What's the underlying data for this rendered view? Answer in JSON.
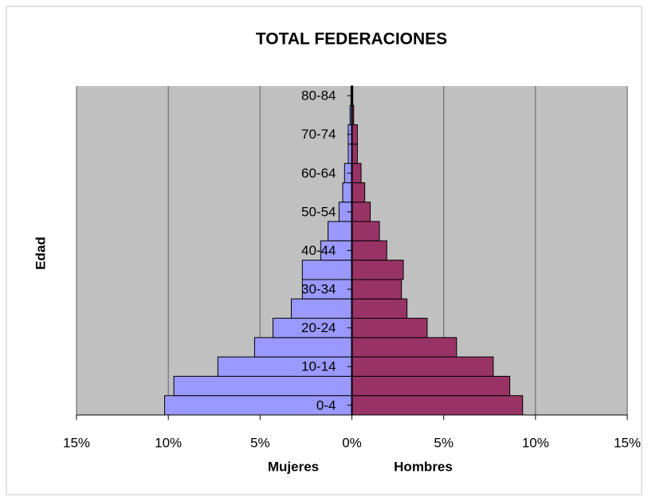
{
  "chart_data": {
    "type": "pyramid",
    "title": "TOTAL FEDERACIONES",
    "y_label": "Edad",
    "categories": [
      "0-4",
      null,
      "10-14",
      null,
      "20-24",
      null,
      "30-34",
      null,
      "40-44",
      null,
      "50-54",
      null,
      "60-64",
      null,
      "70-74",
      null,
      "80-84"
    ],
    "series": [
      {
        "name": "Mujeres",
        "color": "#9999ff",
        "values": [
          -10.2,
          -9.7,
          -7.3,
          -5.3,
          -4.3,
          -3.3,
          -2.7,
          -2.7,
          -1.7,
          -1.3,
          -0.7,
          -0.5,
          -0.4,
          -0.2,
          -0.2,
          -0.1,
          -0.05
        ]
      },
      {
        "name": "Hombres",
        "color": "#993366",
        "values": [
          9.3,
          8.6,
          7.7,
          5.7,
          4.1,
          3.0,
          2.7,
          2.8,
          1.9,
          1.5,
          1.0,
          0.7,
          0.5,
          0.3,
          0.3,
          0.1,
          0.05
        ]
      }
    ],
    "xlim": [
      -15,
      15
    ],
    "xticks": [
      {
        "value": -15,
        "label": "15%"
      },
      {
        "value": -10,
        "label": "10%"
      },
      {
        "value": -5,
        "label": "5%"
      },
      {
        "value": 0,
        "label": "0%"
      },
      {
        "value": 5,
        "label": "5%"
      },
      {
        "value": 10,
        "label": "10%"
      },
      {
        "value": 15,
        "label": "15%"
      }
    ],
    "grid": true,
    "plot_background": "#c0c0c0"
  }
}
